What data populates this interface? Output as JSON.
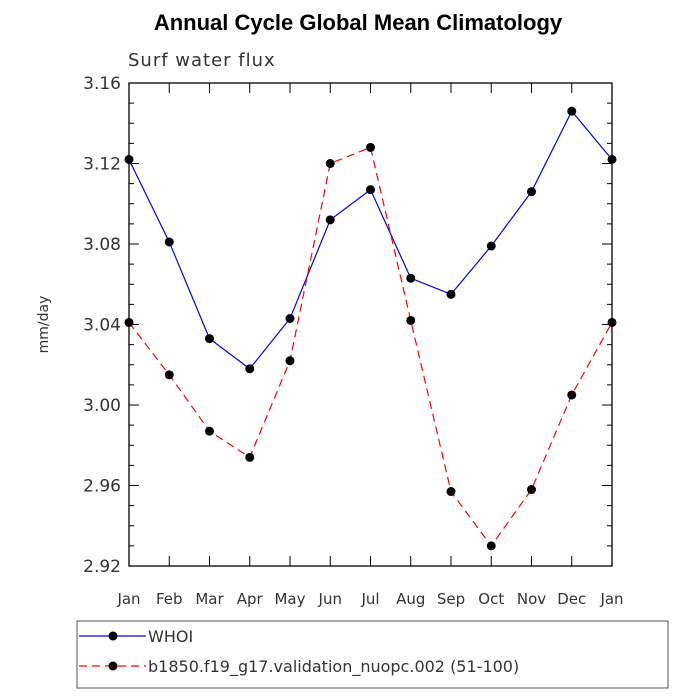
{
  "chart_data": {
    "type": "line",
    "title": "Annual Cycle Global Mean Climatology",
    "subtitle": "Surf water flux",
    "xlabel": "",
    "ylabel": "mm/day",
    "categories": [
      "Jan",
      "Feb",
      "Mar",
      "Apr",
      "May",
      "Jun",
      "Jul",
      "Aug",
      "Sep",
      "Oct",
      "Nov",
      "Dec",
      "Jan"
    ],
    "ylim": [
      2.92,
      3.16
    ],
    "yticks": [
      "3.16",
      "3.12",
      "3.08",
      "3.04",
      "3.00",
      "2.96",
      "2.92"
    ],
    "grid": false,
    "legend_position": "bottom",
    "series": [
      {
        "name": "WHOI",
        "color": "#0000ff",
        "style": "solid",
        "values": [
          3.122,
          3.081,
          3.033,
          3.018,
          3.043,
          3.092,
          3.107,
          3.063,
          3.055,
          3.079,
          3.106,
          3.146,
          3.122
        ]
      },
      {
        "name": "b1850.f19_g17.validation_nuopc.002 (51-100)",
        "color": "#ff0000",
        "style": "dashed",
        "values": [
          3.041,
          3.015,
          2.987,
          2.974,
          3.022,
          3.12,
          3.128,
          3.042,
          2.957,
          2.93,
          2.958,
          3.005,
          3.041
        ]
      }
    ]
  }
}
